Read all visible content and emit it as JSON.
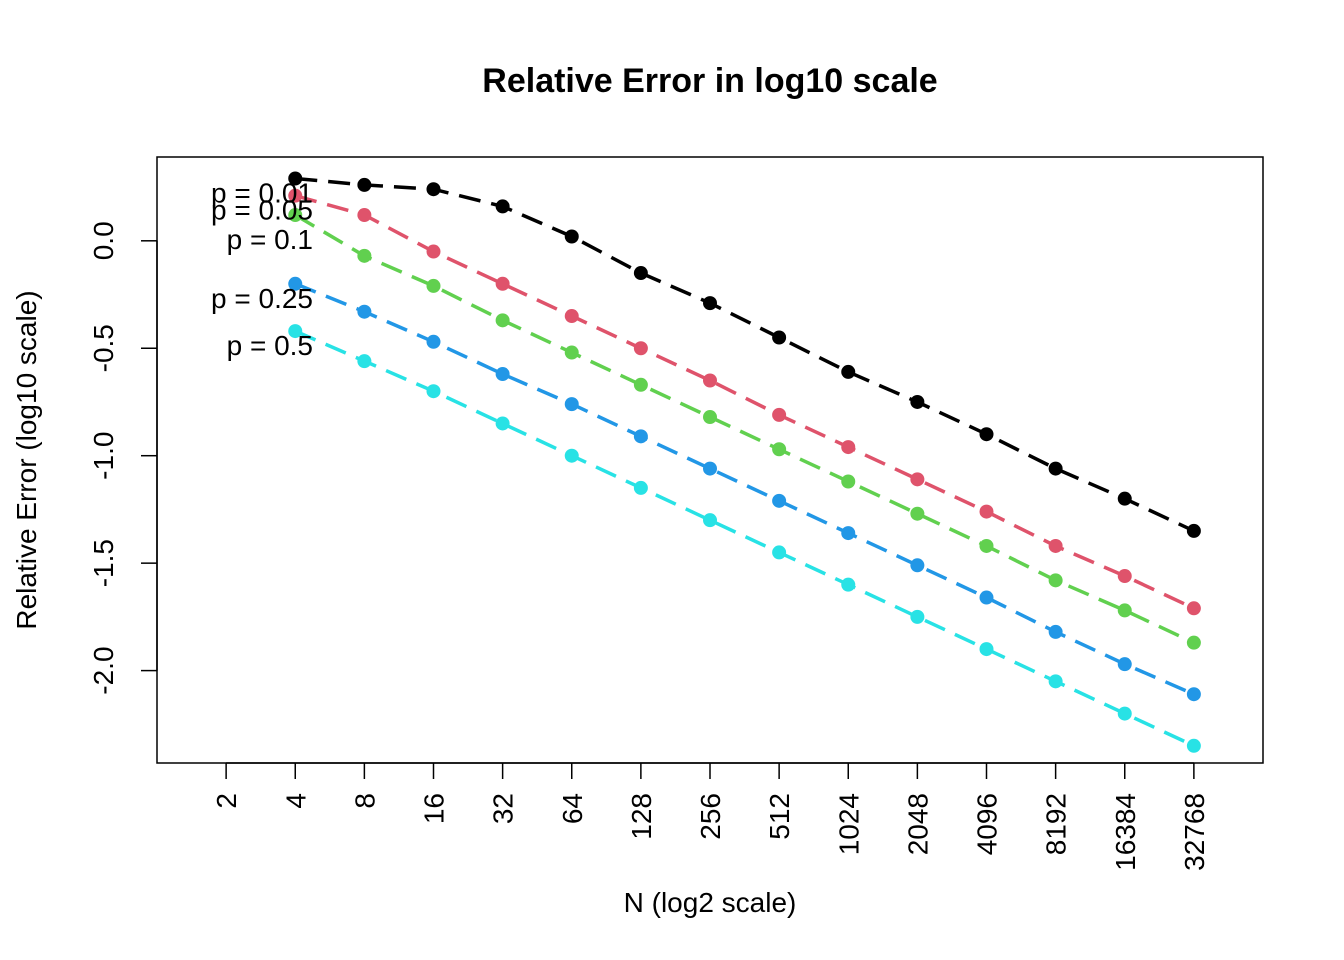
{
  "chart_data": {
    "type": "line",
    "title": "Relative Error in log10 scale",
    "xlabel": "N (log2 scale)",
    "ylabel": "Relative Error (log10 scale)",
    "x_scale": "log2",
    "x_ticks": [
      2,
      4,
      8,
      16,
      32,
      64,
      128,
      256,
      512,
      1024,
      2048,
      4096,
      8192,
      16384,
      32768
    ],
    "y_ticks": [
      0.0,
      -0.5,
      -1.0,
      -1.5,
      -2.0
    ],
    "y_tick_labels": [
      "0.0",
      "-0.5",
      "-1.0",
      "-1.5",
      "-2.0"
    ],
    "xlim": [
      1,
      65536
    ],
    "ylim": [
      -2.43,
      0.39
    ],
    "grid": false,
    "legend": "none",
    "x": [
      4,
      8,
      16,
      32,
      64,
      128,
      256,
      512,
      1024,
      2048,
      4096,
      8192,
      16384,
      32768
    ],
    "series": [
      {
        "name": "p = 0.01",
        "color": "#000000",
        "values": [
          0.29,
          0.26,
          0.24,
          0.16,
          0.02,
          -0.15,
          -0.29,
          -0.45,
          -0.61,
          -0.75,
          -0.9,
          -1.06,
          -1.2,
          -1.35
        ]
      },
      {
        "name": "p = 0.05",
        "color": "#DF536B",
        "values": [
          0.21,
          0.12,
          -0.05,
          -0.2,
          -0.35,
          -0.5,
          -0.65,
          -0.81,
          -0.96,
          -1.11,
          -1.26,
          -1.42,
          -1.56,
          -1.71
        ]
      },
      {
        "name": "p = 0.1",
        "color": "#61D04F",
        "values": [
          0.12,
          -0.07,
          -0.21,
          -0.37,
          -0.52,
          -0.67,
          -0.82,
          -0.97,
          -1.12,
          -1.27,
          -1.42,
          -1.58,
          -1.72,
          -1.87
        ]
      },
      {
        "name": "p = 0.25",
        "color": "#2297E6",
        "values": [
          -0.2,
          -0.33,
          -0.47,
          -0.62,
          -0.76,
          -0.91,
          -1.06,
          -1.21,
          -1.36,
          -1.51,
          -1.66,
          -1.82,
          -1.97,
          -2.11
        ]
      },
      {
        "name": "p = 0.5",
        "color": "#28E2E5",
        "values": [
          -0.42,
          -0.56,
          -0.7,
          -0.85,
          -1.0,
          -1.15,
          -1.3,
          -1.45,
          -1.6,
          -1.75,
          -1.9,
          -2.05,
          -2.2,
          -2.35
        ]
      }
    ]
  }
}
